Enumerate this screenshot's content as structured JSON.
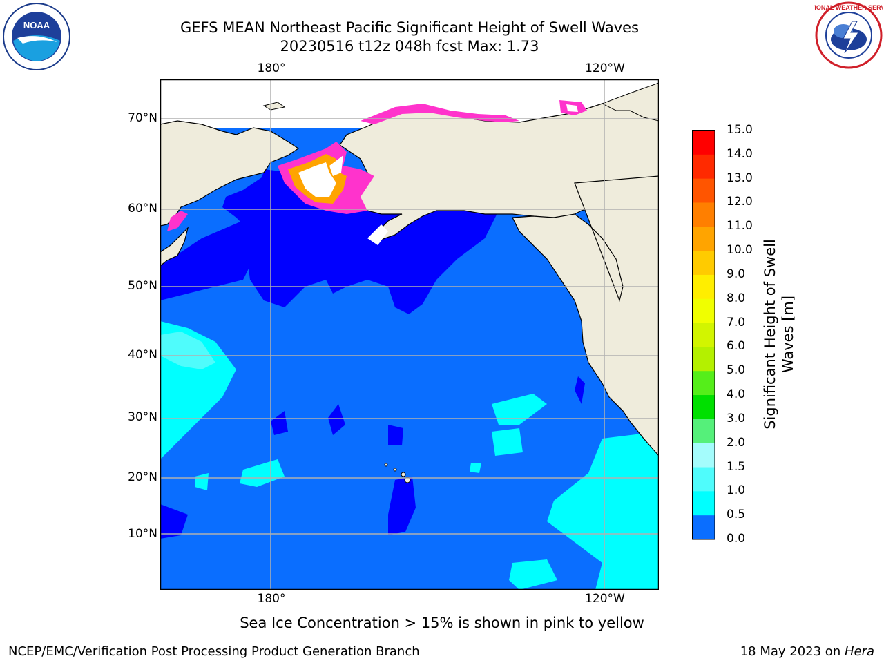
{
  "header": {
    "title_line1": "GEFS MEAN Northeast Pacific Significant Height of Swell Waves",
    "title_line2": "20230516 t12z 048h fcst   Max: 1.73"
  },
  "logos": {
    "left": "NOAA",
    "right": "NATIONAL WEATHER SERVICE"
  },
  "map": {
    "top_lon_labels": [
      "180°",
      "120°W"
    ],
    "bottom_lon_labels": [
      "180°",
      "120°W"
    ],
    "lat_labels": [
      "70°N",
      "60°N",
      "50°N",
      "40°N",
      "30°N",
      "20°N",
      "10°N"
    ],
    "colors": {
      "land": "#efecdc",
      "ocean_default": "#0a6eff",
      "grid": "#b0b0b0",
      "ice": "#ff33cc"
    }
  },
  "colorbar": {
    "label_line1": "Significant Height of Swell",
    "label_line2": "Waves [m]",
    "ticks": [
      "15.0",
      "14.0",
      "13.0",
      "12.0",
      "11.0",
      "10.0",
      "9.0",
      "8.0",
      "7.0",
      "6.0",
      "5.0",
      "4.0",
      "3.0",
      "2.0",
      "1.5",
      "1.0",
      "0.5",
      "0.0"
    ],
    "colors_top_to_bottom": [
      "#ff0000",
      "#ff2a00",
      "#ff5500",
      "#ff7f00",
      "#ffa400",
      "#ffcb00",
      "#ffee00",
      "#f0ff00",
      "#d2f500",
      "#b4f000",
      "#55ee1a",
      "#00e000",
      "#55f07a",
      "#a4fcfc",
      "#4ffcfc",
      "#00ffff",
      "#0a6eff",
      "#0000ff"
    ]
  },
  "footer": {
    "note": "Sea Ice Concentration > 15% is shown in pink to yellow",
    "credit": "NCEP/EMC/Verification Post Processing Product Generation Branch",
    "date_prefix": "18 May 2023 on ",
    "date_host": "Hera"
  }
}
